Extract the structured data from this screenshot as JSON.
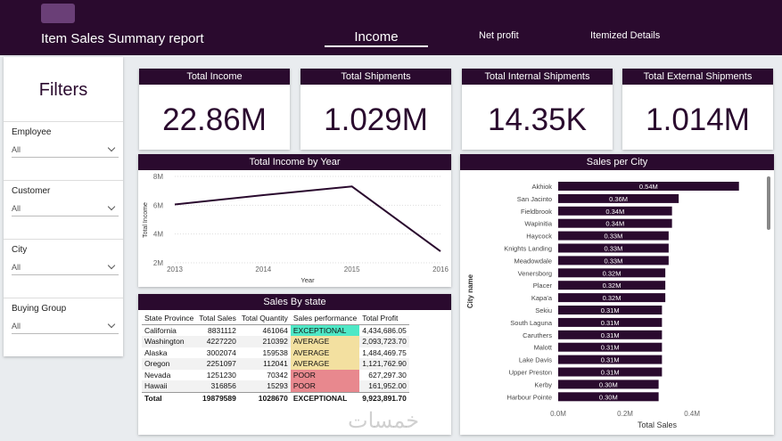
{
  "header": {
    "title": "Item Sales Summary report",
    "tabs": [
      "Income",
      "Net profit",
      "Itemized Details"
    ]
  },
  "filters": {
    "title": "Filters",
    "items": [
      {
        "label": "Employee",
        "value": "All"
      },
      {
        "label": "Customer",
        "value": "All"
      },
      {
        "label": "City",
        "value": "All"
      },
      {
        "label": "Buying Group",
        "value": "All"
      }
    ]
  },
  "kpis": [
    {
      "label": "Total Income",
      "value": "22.86M"
    },
    {
      "label": "Total Shipments",
      "value": "1.029M"
    },
    {
      "label": "Total Internal Shipments",
      "value": "14.35K"
    },
    {
      "label": "Total External Shipments",
      "value": "1.014M"
    }
  ],
  "chart_data": [
    {
      "type": "line",
      "title": "Total Income by Year",
      "x_label": "Year",
      "y_label": "Total Income",
      "x": [
        2013,
        2014,
        2015,
        2016
      ],
      "values": [
        6050000,
        6700000,
        7300000,
        2800000
      ],
      "color": "#2a0a2e",
      "xlim": [
        2013,
        2016
      ],
      "xticks": [
        2013,
        2014,
        2015,
        2016
      ],
      "ylim": [
        2000000,
        8000000
      ],
      "yticks": [
        {
          "value": 2000000,
          "label": "2M"
        },
        {
          "value": 4000000,
          "label": "4M"
        },
        {
          "value": 6000000,
          "label": "6M"
        },
        {
          "value": 8000000,
          "label": "8M"
        }
      ],
      "grid": true
    },
    {
      "type": "hbar",
      "title": "Sales per City",
      "x_label": "Total Sales",
      "y_label": "City name",
      "color": "#2a0a2e",
      "categories": [
        "Akhiok",
        "San Jacinto",
        "Fieldbrook",
        "Wapinitia",
        "Haycock",
        "Knights Landing",
        "Meadowdale",
        "Venersborg",
        "Placer",
        "Kapa'a",
        "Sekiu",
        "South Laguna",
        "Caruthers",
        "Malott",
        "Lake Davis",
        "Upper Preston",
        "Kerby",
        "Harbour Pointe"
      ],
      "values": [
        540000,
        360000,
        340000,
        340000,
        330000,
        330000,
        330000,
        320000,
        320000,
        320000,
        310000,
        310000,
        310000,
        310000,
        310000,
        310000,
        300000,
        300000
      ],
      "value_labels": [
        "0.54M",
        "0.36M",
        "0.34M",
        "0.34M",
        "0.33M",
        "0.33M",
        "0.33M",
        "0.32M",
        "0.32M",
        "0.32M",
        "0.31M",
        "0.31M",
        "0.31M",
        "0.31M",
        "0.31M",
        "0.31M",
        "0.30M",
        "0.30M"
      ],
      "xlim": [
        0,
        610000
      ],
      "xticks": [
        {
          "value": 0,
          "label": "0.0M"
        },
        {
          "value": 200000,
          "label": "0.2M"
        },
        {
          "value": 400000,
          "label": "0.4M"
        }
      ]
    }
  ],
  "table": {
    "title": "Sales By state",
    "columns": [
      "State Province",
      "Total Sales",
      "Total Quantity",
      "Sales performance",
      "Total Profit"
    ],
    "rows": [
      [
        "California",
        8831112,
        461064,
        "EXCEPTIONAL",
        "4,434,686.05"
      ],
      [
        "Washington",
        4227220,
        210392,
        "AVERAGE",
        "2,093,723.70"
      ],
      [
        "Alaska",
        3002074,
        159538,
        "AVERAGE",
        "1,484,469.75"
      ],
      [
        "Oregon",
        2251097,
        112041,
        "AVERAGE",
        "1,121,762.90"
      ],
      [
        "Nevada",
        1251230,
        70342,
        "POOR",
        "627,297.30"
      ],
      [
        "Hawaii",
        316856,
        15293,
        "POOR",
        "161,952.00"
      ],
      [
        "Total",
        19879589,
        1028670,
        "EXCEPTIONAL",
        "9,923,891.70"
      ]
    ],
    "performance_colors": [
      "#4ee8c6",
      "#f3e0a0",
      "#f3e0a0",
      "#f3e0a0",
      "#e8888e",
      "#e8888e"
    ]
  },
  "watermark": "خمسات"
}
